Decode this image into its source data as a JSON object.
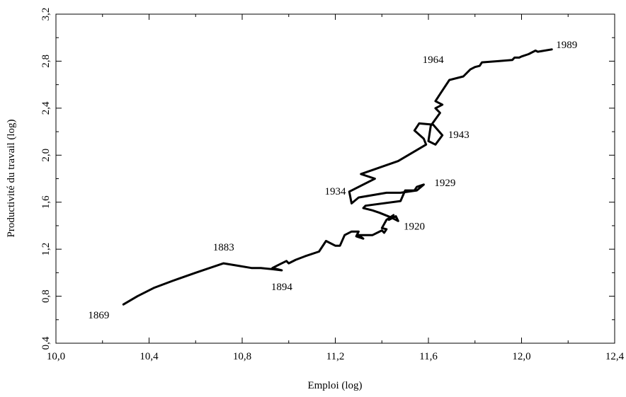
{
  "chart_data": {
    "type": "line",
    "title": "",
    "xlabel": "Emploi (log)",
    "ylabel": "Productivité du travail (log)",
    "xlim": [
      10.0,
      12.4
    ],
    "ylim": [
      0.4,
      3.2
    ],
    "grid": false,
    "legend": "none",
    "x_ticks": [
      {
        "value": 10.0,
        "label": "10,0"
      },
      {
        "value": 10.4,
        "label": "10,4"
      },
      {
        "value": 10.8,
        "label": "10,8"
      },
      {
        "value": 11.2,
        "label": "11,2"
      },
      {
        "value": 11.6,
        "label": "11,6"
      },
      {
        "value": 12.0,
        "label": "12,0"
      },
      {
        "value": 12.4,
        "label": "12,4"
      }
    ],
    "y_ticks": [
      {
        "value": 0.4,
        "label": "0,4"
      },
      {
        "value": 0.8,
        "label": "0,8"
      },
      {
        "value": 1.2,
        "label": "1,2"
      },
      {
        "value": 1.6,
        "label": "1,6"
      },
      {
        "value": 2.0,
        "label": "2,0"
      },
      {
        "value": 2.4,
        "label": "2,4"
      },
      {
        "value": 2.8,
        "label": "2,8"
      },
      {
        "value": 3.2,
        "label": "3,2"
      }
    ],
    "series": [
      {
        "color": "#000000",
        "points": [
          [
            10.29,
            0.73
          ],
          [
            10.35,
            0.8
          ],
          [
            10.42,
            0.87
          ],
          [
            10.5,
            0.93
          ],
          [
            10.6,
            1.0
          ],
          [
            10.72,
            1.08
          ],
          [
            10.78,
            1.06
          ],
          [
            10.84,
            1.04
          ],
          [
            10.88,
            1.04
          ],
          [
            10.93,
            1.03
          ],
          [
            10.97,
            1.02
          ],
          [
            10.93,
            1.04
          ],
          [
            10.96,
            1.07
          ],
          [
            10.99,
            1.1
          ],
          [
            11.0,
            1.08
          ],
          [
            11.03,
            1.11
          ],
          [
            11.07,
            1.14
          ],
          [
            11.13,
            1.18
          ],
          [
            11.16,
            1.27
          ],
          [
            11.2,
            1.23
          ],
          [
            11.22,
            1.23
          ],
          [
            11.24,
            1.32
          ],
          [
            11.27,
            1.35
          ],
          [
            11.3,
            1.35
          ],
          [
            11.29,
            1.31
          ],
          [
            11.32,
            1.29
          ],
          [
            11.3,
            1.32
          ],
          [
            11.36,
            1.32
          ],
          [
            11.4,
            1.36
          ],
          [
            11.41,
            1.34
          ],
          [
            11.42,
            1.37
          ],
          [
            11.4,
            1.38
          ],
          [
            11.42,
            1.45
          ],
          [
            11.45,
            1.49
          ],
          [
            11.43,
            1.45
          ],
          [
            11.46,
            1.48
          ],
          [
            11.47,
            1.44
          ],
          [
            11.44,
            1.47
          ],
          [
            11.39,
            1.51
          ],
          [
            11.36,
            1.53
          ],
          [
            11.32,
            1.55
          ],
          [
            11.33,
            1.57
          ],
          [
            11.48,
            1.61
          ],
          [
            11.5,
            1.7
          ],
          [
            11.54,
            1.7
          ],
          [
            11.55,
            1.73
          ],
          [
            11.58,
            1.75
          ],
          [
            11.55,
            1.7
          ],
          [
            11.48,
            1.68
          ],
          [
            11.42,
            1.68
          ],
          [
            11.3,
            1.64
          ],
          [
            11.27,
            1.59
          ],
          [
            11.26,
            1.69
          ],
          [
            11.37,
            1.8
          ],
          [
            11.31,
            1.84
          ],
          [
            11.47,
            1.95
          ],
          [
            11.59,
            2.09
          ],
          [
            11.58,
            2.14
          ],
          [
            11.54,
            2.21
          ],
          [
            11.56,
            2.27
          ],
          [
            11.62,
            2.26
          ],
          [
            11.66,
            2.17
          ],
          [
            11.63,
            2.09
          ],
          [
            11.6,
            2.12
          ],
          [
            11.61,
            2.25
          ],
          [
            11.65,
            2.36
          ],
          [
            11.63,
            2.4
          ],
          [
            11.66,
            2.43
          ],
          [
            11.63,
            2.46
          ],
          [
            11.65,
            2.52
          ],
          [
            11.66,
            2.55
          ],
          [
            11.69,
            2.64
          ],
          [
            11.75,
            2.67
          ],
          [
            11.78,
            2.73
          ],
          [
            11.8,
            2.75
          ],
          [
            11.82,
            2.76
          ],
          [
            11.83,
            2.79
          ],
          [
            11.9,
            2.8
          ],
          [
            11.96,
            2.81
          ],
          [
            11.97,
            2.83
          ],
          [
            11.99,
            2.83
          ],
          [
            12.0,
            2.84
          ],
          [
            12.03,
            2.86
          ],
          [
            12.06,
            2.89
          ],
          [
            12.07,
            2.88
          ],
          [
            12.13,
            2.9
          ]
        ]
      }
    ],
    "annotations": [
      {
        "text": "1869",
        "x": 10.29,
        "y": 0.73
      },
      {
        "text": "1883",
        "x": 10.72,
        "y": 1.08
      },
      {
        "text": "1894",
        "x": 10.97,
        "y": 1.02
      },
      {
        "text": "1920",
        "x": 11.46,
        "y": 1.45
      },
      {
        "text": "1929",
        "x": 11.58,
        "y": 1.75
      },
      {
        "text": "1934",
        "x": 11.27,
        "y": 1.69
      },
      {
        "text": "1943",
        "x": 11.66,
        "y": 2.17
      },
      {
        "text": "1964",
        "x": 11.69,
        "y": 2.64
      },
      {
        "text": "1989",
        "x": 12.13,
        "y": 2.9
      }
    ]
  }
}
